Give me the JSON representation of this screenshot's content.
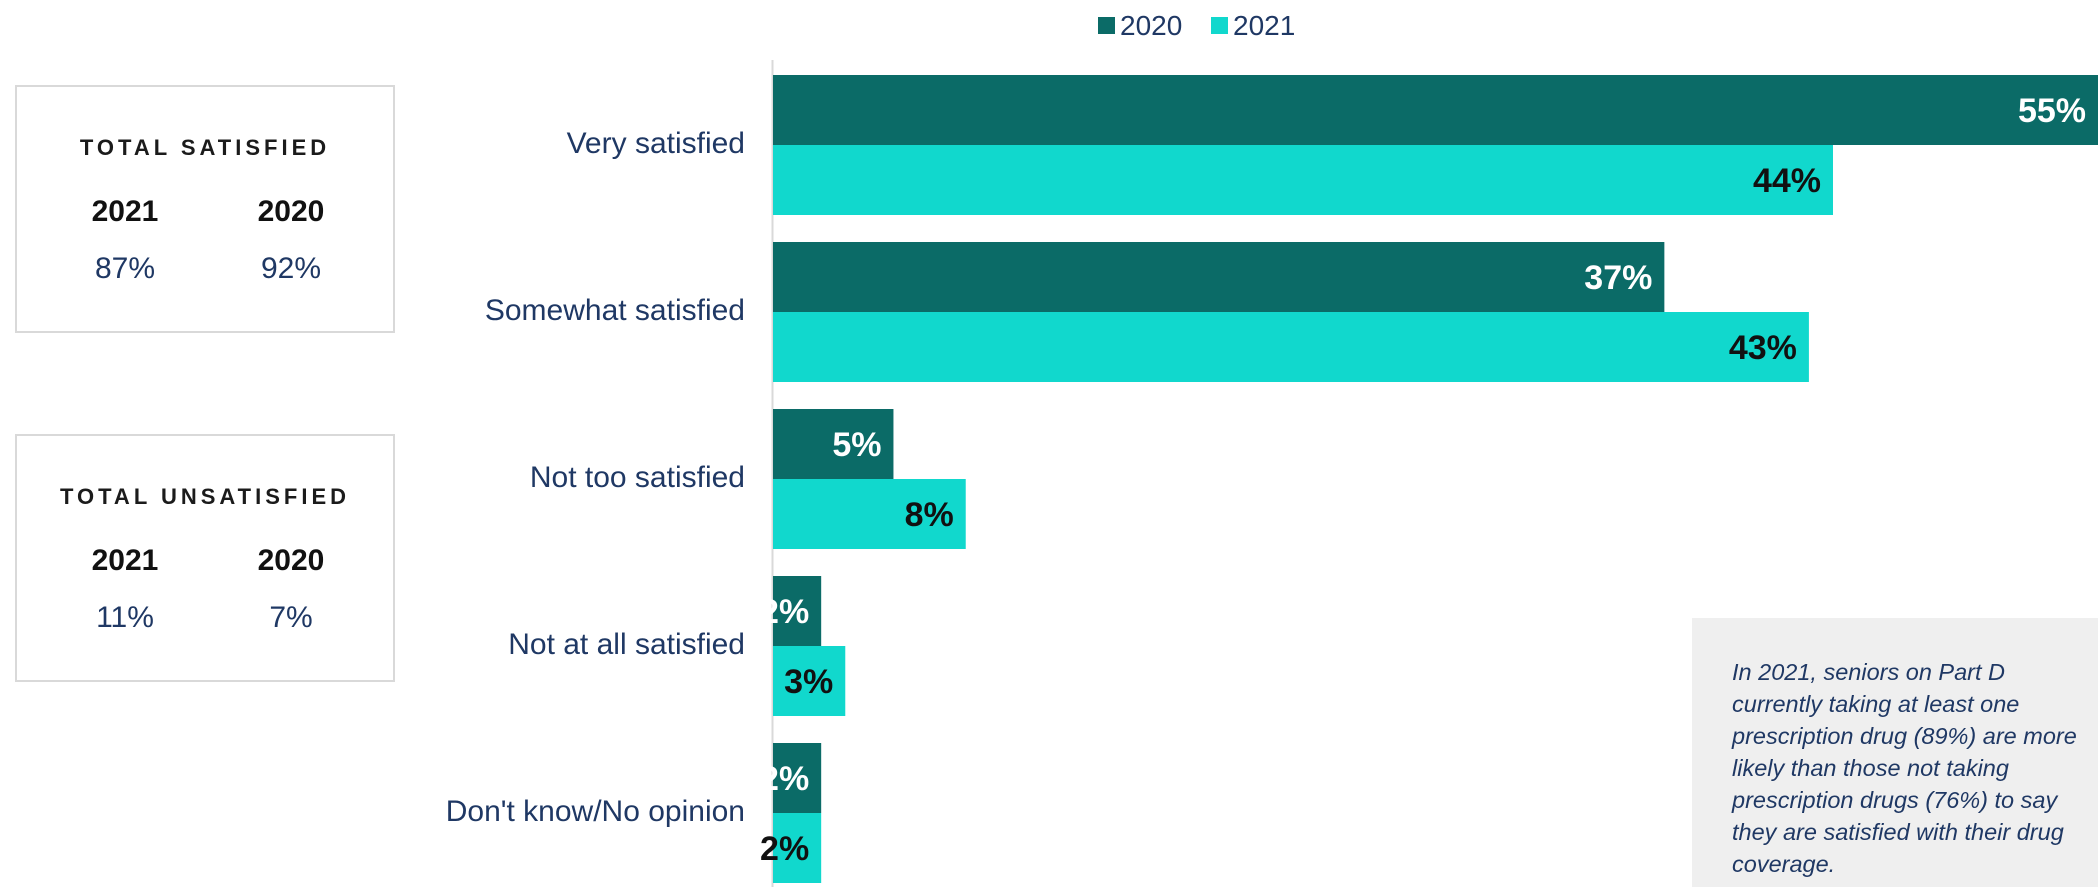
{
  "summary_boxes": {
    "satisfied": {
      "title": "TOTAL SATISFIED",
      "year_a": "2021",
      "year_b": "2020",
      "value_a": "87%",
      "value_b": "92%"
    },
    "unsatisfied": {
      "title": "TOTAL UNSATISFIED",
      "year_a": "2021",
      "year_b": "2020",
      "value_a": "11%",
      "value_b": "7%"
    }
  },
  "note": "In 2021, seniors on Part D currently taking at least one prescription drug (89%) are more likely than those not taking prescription drugs (76%) to say they are satisfied with their drug coverage.",
  "colors": {
    "series_2020": "#0b6b67",
    "series_2021": "#11d8cd",
    "category_text": "#1f3864"
  },
  "chart_data": {
    "type": "bar",
    "orientation": "horizontal",
    "categories": [
      "Very satisfied",
      "Somewhat satisfied",
      "Not too satisfied",
      "Not at all satisfied",
      "Don't know/No opinion"
    ],
    "series": [
      {
        "name": "2020",
        "values": [
          55,
          37,
          5,
          2,
          2
        ],
        "labels": [
          "55%",
          "37%",
          "5%",
          "2%",
          "2%"
        ],
        "color": "#0b6b67",
        "label_color": "#ffffff"
      },
      {
        "name": "2021",
        "values": [
          44,
          43,
          8,
          3,
          2
        ],
        "labels": [
          "44%",
          "43%",
          "8%",
          "3%",
          "2%"
        ],
        "color": "#11d8cd",
        "label_color": "#111111"
      }
    ],
    "xlim": [
      0,
      55
    ],
    "legend_position": "top",
    "grid": false
  }
}
